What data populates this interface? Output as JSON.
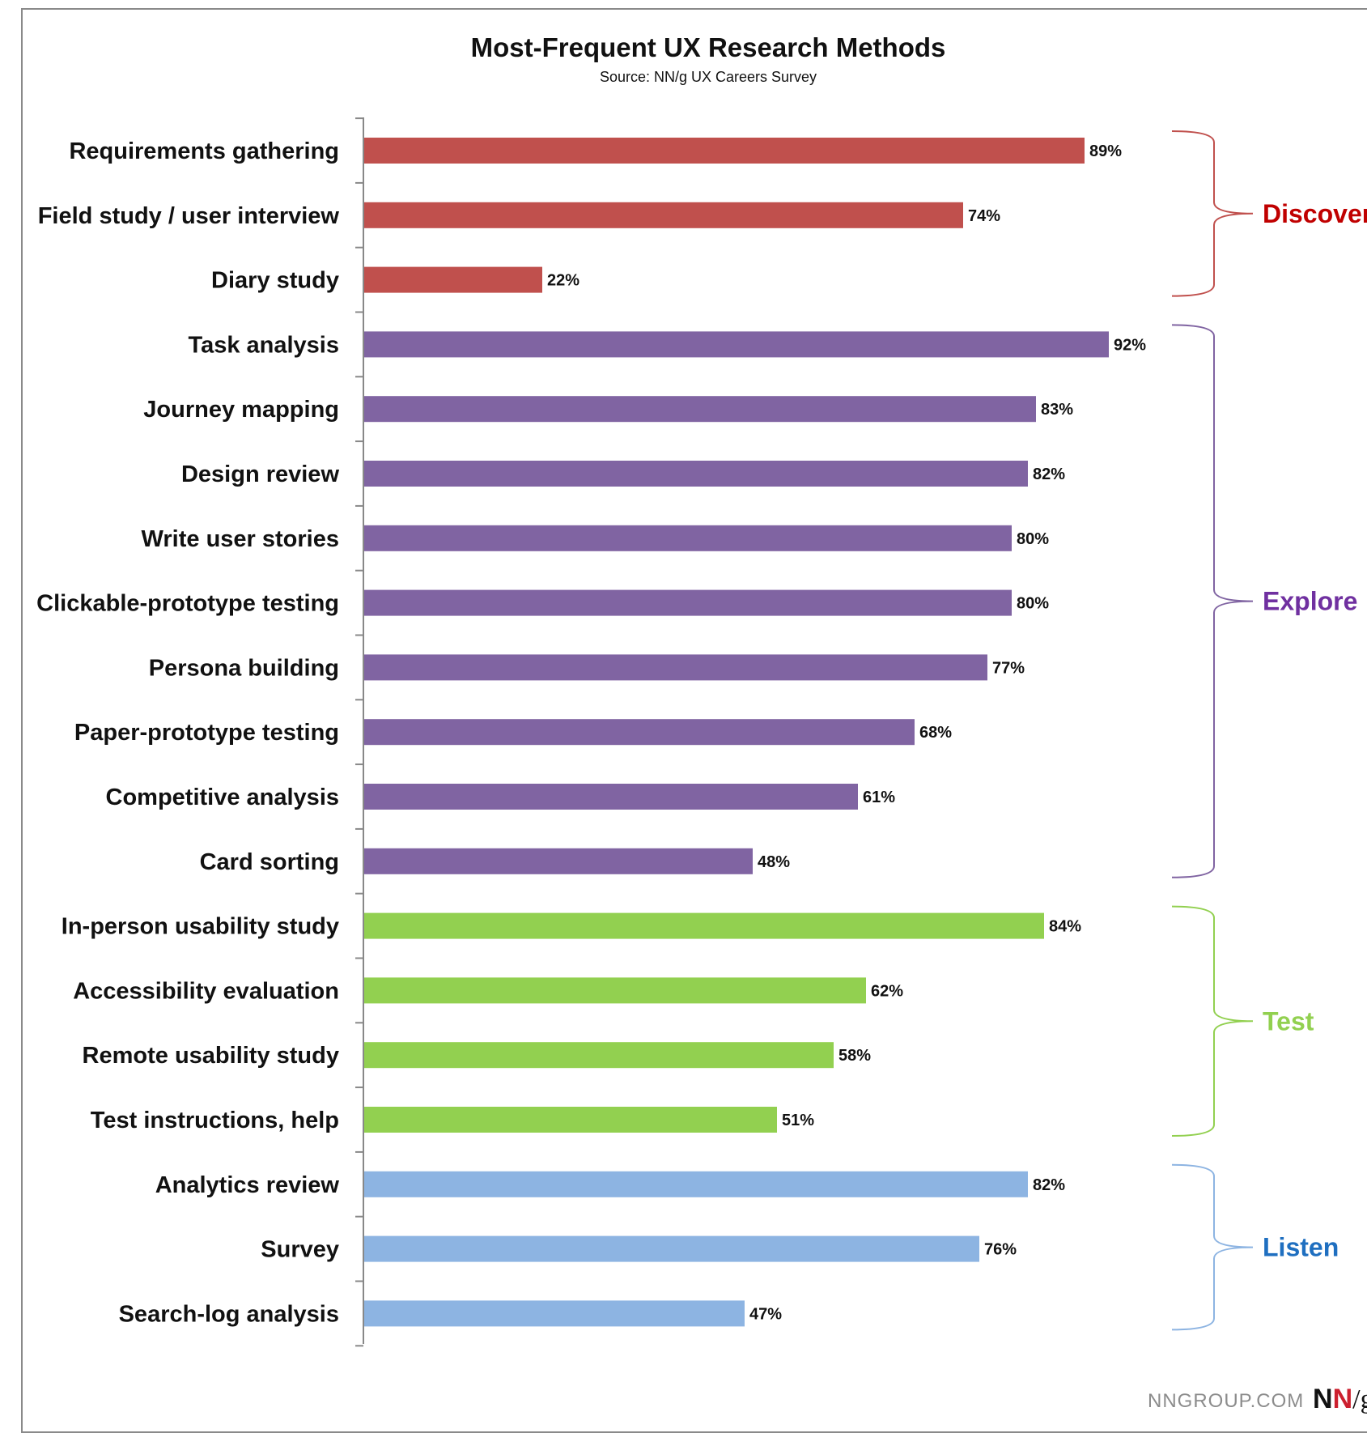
{
  "chart_data": {
    "type": "bar",
    "orientation": "horizontal",
    "title": "Most-Frequent UX Research Methods",
    "subtitle": "Source: NN/g UX Careers Survey",
    "xlim": [
      0,
      100
    ],
    "grid": false,
    "legend": "none",
    "groups": [
      {
        "name": "Discover",
        "color": "#c0504d",
        "start": 0,
        "end": 2
      },
      {
        "name": "Explore",
        "color": "#8064a2",
        "start": 3,
        "end": 11
      },
      {
        "name": "Test",
        "color": "#92d050",
        "start": 12,
        "end": 15
      },
      {
        "name": "Listen",
        "color": "#8db4e2",
        "start": 16,
        "end": 18
      }
    ],
    "categories": [
      "Requirements gathering",
      "Field study / user interview",
      "Diary study",
      "Task analysis",
      "Journey mapping",
      "Design review",
      "Write user stories",
      "Clickable-prototype testing",
      "Persona building",
      "Paper-prototype testing",
      "Competitive analysis",
      "Card sorting",
      "In-person usability study",
      "Accessibility evaluation",
      "Remote usability study",
      "Test instructions, help",
      "Analytics review",
      "Survey",
      "Search-log analysis"
    ],
    "values": [
      89,
      74,
      22,
      92,
      83,
      82,
      80,
      80,
      77,
      68,
      61,
      48,
      84,
      62,
      58,
      51,
      82,
      76,
      47
    ],
    "value_labels": [
      "89%",
      "74%",
      "22%",
      "92%",
      "83%",
      "82%",
      "80%",
      "80%",
      "77%",
      "68%",
      "61%",
      "48%",
      "84%",
      "62%",
      "58%",
      "51%",
      "82%",
      "76%",
      "47%"
    ],
    "label_colors": {
      "Discover": "#c00000",
      "Explore": "#7030a0",
      "Test": "#92d050",
      "Listen": "#1f6fc0"
    }
  },
  "footer": {
    "site": "NNGROUP.COM",
    "logo_n1": "N",
    "logo_n2": "N",
    "logo_slash_g": "/g"
  }
}
